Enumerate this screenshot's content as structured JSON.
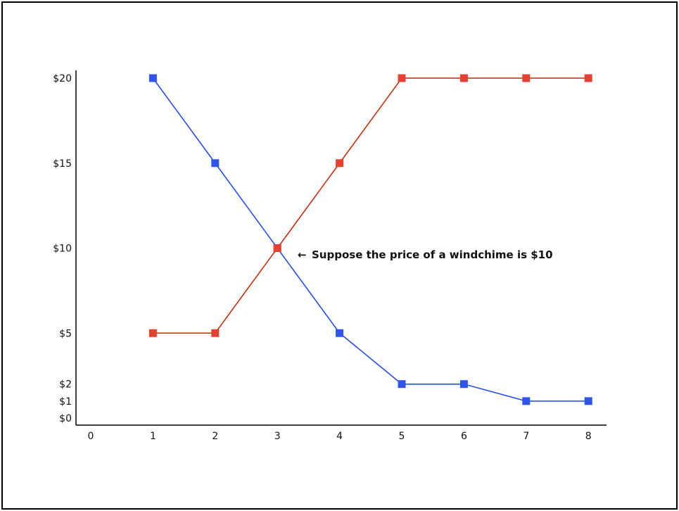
{
  "chart_data": {
    "type": "line",
    "title": "",
    "xlabel": "",
    "ylabel": "",
    "x": [
      1,
      2,
      3,
      4,
      5,
      6,
      7,
      8
    ],
    "x_ticks": [
      "0",
      "1",
      "2",
      "3",
      "4",
      "5",
      "6",
      "7",
      "8"
    ],
    "y_ticks": [
      "$0",
      "$1",
      "$2",
      "$5",
      "$10",
      "$15",
      "$20"
    ],
    "y_tick_values": [
      0,
      1,
      2,
      5,
      10,
      15,
      20
    ],
    "xlim": [
      0,
      8
    ],
    "ylim": [
      0,
      20
    ],
    "grid": false,
    "series": [
      {
        "color": "#1a40ff",
        "marker_color": "#2f55ee",
        "values": [
          20,
          15,
          10,
          5,
          2,
          2,
          1,
          1
        ]
      },
      {
        "color": "#cc2200",
        "marker_color": "#e84030",
        "values": [
          5,
          5,
          10,
          15,
          20,
          20,
          20,
          20
        ]
      }
    ],
    "annotation": {
      "text": "Suppose the price of a windchime is $10",
      "arrow": "←",
      "at_x": 3,
      "at_y": 10
    }
  }
}
